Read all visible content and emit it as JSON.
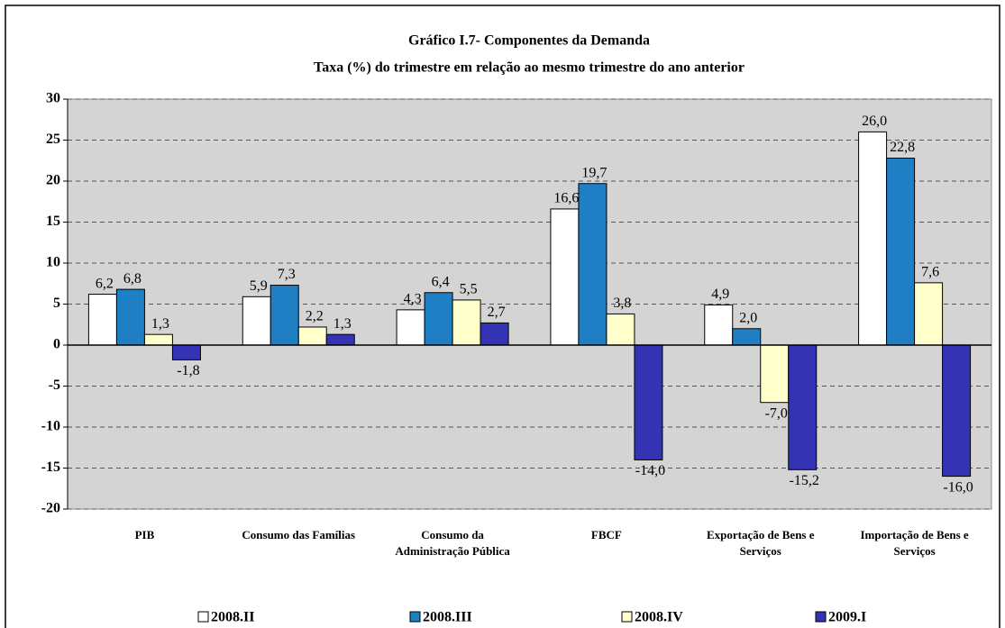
{
  "chart_data": {
    "type": "bar",
    "title": "Gráfico I.7- Componentes da Demanda",
    "subtitle": "Taxa (%) do trimestre em relação ao mesmo trimestre do ano anterior",
    "categories": [
      "PIB",
      "Consumo das Famílias",
      "Consumo da Administração Pública",
      "FBCF",
      "Exportação de Bens e Serviços",
      "Importação de Bens e Serviços"
    ],
    "series": [
      {
        "name": "2008.II",
        "color": "#ffffff",
        "values": [
          6.2,
          5.9,
          4.3,
          16.6,
          4.9,
          26.0
        ],
        "value_labels": [
          "6,2",
          "5,9",
          "4,3",
          "16,6",
          "4,9",
          "26,0"
        ]
      },
      {
        "name": "2008.III",
        "color": "#1f7fc4",
        "values": [
          6.8,
          7.3,
          6.4,
          19.7,
          2.0,
          22.8
        ],
        "value_labels": [
          "6,8",
          "7,3",
          "6,4",
          "19,7",
          "2,0",
          "22,8"
        ]
      },
      {
        "name": "2008.IV",
        "color": "#ffffcc",
        "values": [
          1.3,
          2.2,
          5.5,
          3.8,
          -7.0,
          7.6
        ],
        "value_labels": [
          "1,3",
          "2,2",
          "5,5",
          "3,8",
          "-7,0",
          "7,6"
        ]
      },
      {
        "name": "2009.I",
        "color": "#3333b3",
        "values": [
          -1.8,
          1.3,
          2.7,
          -14.0,
          -15.2,
          -16.0
        ],
        "value_labels": [
          "-1,8",
          "1,3",
          "2,7",
          "-14,0",
          "-15,2",
          "-16,0"
        ]
      }
    ],
    "ylim": [
      -20,
      30
    ],
    "yticks": [
      -20,
      -15,
      -10,
      -5,
      0,
      5,
      10,
      15,
      20,
      25,
      30
    ],
    "grid": true
  }
}
